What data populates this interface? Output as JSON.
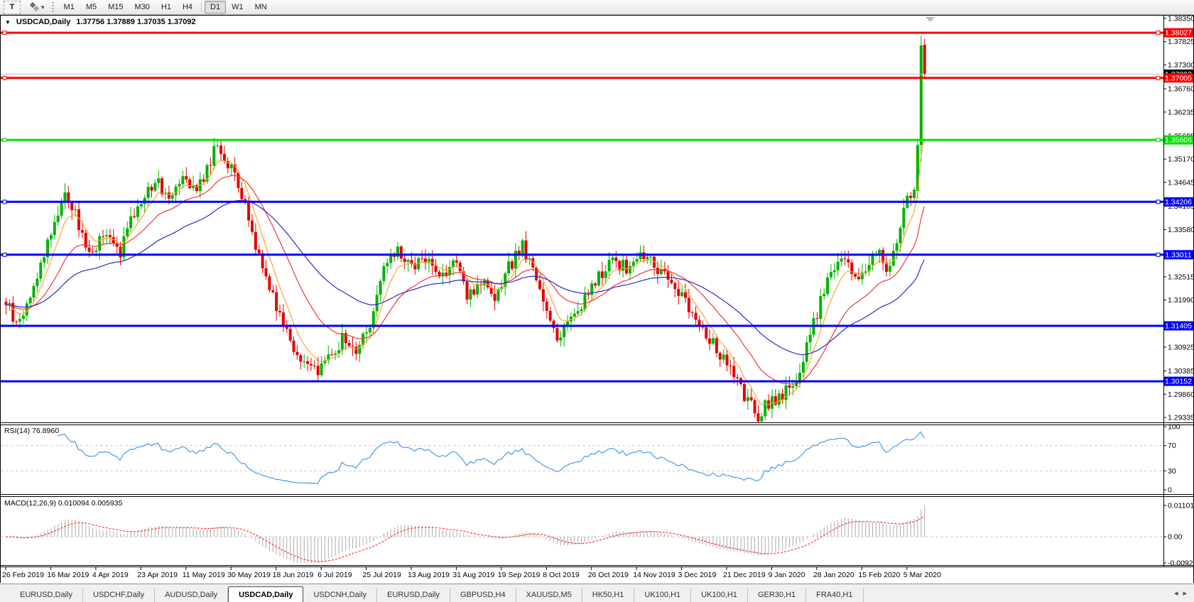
{
  "icons": {
    "title_collapse": "▼",
    "tool_caret": "▾",
    "tab_scroll_left": "◂",
    "tab_scroll_right": "▸"
  },
  "toolbar": {
    "text_tool_label": "T",
    "timeframes": [
      {
        "label": "M1",
        "active": false
      },
      {
        "label": "M5",
        "active": false
      },
      {
        "label": "M15",
        "active": false
      },
      {
        "label": "M30",
        "active": false
      },
      {
        "label": "H1",
        "active": false
      },
      {
        "label": "H4",
        "active": false
      },
      {
        "label": "D1",
        "active": true
      },
      {
        "label": "W1",
        "active": false
      },
      {
        "label": "MN",
        "active": false
      }
    ]
  },
  "title": {
    "symbol": "USDCAD,Daily",
    "ohlc": "1.37756 1.37889 1.37035 1.37092"
  },
  "tabs": {
    "items": [
      "EURUSD,Daily",
      "USDCHF,Daily",
      "AUDUSD,Daily",
      "USDCAD,Daily",
      "USDCNH,Daily",
      "EURUSD,Daily",
      "GBPUSD,H4",
      "XAUUSD,M5",
      "HK50,H1",
      "UK100,H1",
      "UK100,H1",
      "GER30,H1",
      "FRA40,H1"
    ],
    "active_index": 3
  },
  "colors": {
    "candle_up": "#00B300",
    "candle_down": "#E60000",
    "ma_fast": "#FFA52E",
    "ma_mid": "#F23535",
    "ma_slow": "#2A2AC8",
    "hline_red": "#FF0000",
    "hline_green": "#00E100",
    "hline_blue": "#0000FF",
    "current_price_line": "#BBBBBB",
    "current_price_badge": "#000000",
    "rsi_line": "#4499EE",
    "macd_hist": "#ABABAB",
    "macd_signal": "#FF3535",
    "level_dash": "#CCCCCC",
    "axis_text": "#000000"
  },
  "chart_data": {
    "type": "candlestick",
    "symbol": "USDCAD",
    "timeframe": "Daily",
    "last_candle": {
      "open": 1.37756,
      "high": 1.37889,
      "low": 1.37035,
      "close": 1.37092
    },
    "price_axis": {
      "max": 1.3835,
      "min": 1.29335,
      "ticks": [
        "1.38350",
        "1.37825",
        "1.37300",
        "1.36760",
        "1.36235",
        "1.35695",
        "1.35170",
        "1.34645",
        "1.34105",
        "1.33580",
        "1.32515",
        "1.31990",
        "1.30925",
        "1.30385",
        "1.29860",
        "1.29335"
      ]
    },
    "hlines": [
      {
        "price": 1.38027,
        "label": "1.38027",
        "color": "#FF0000",
        "width": 3,
        "handles": true
      },
      {
        "price": 1.37092,
        "label": "1.37092",
        "color": "#BBBBBB",
        "badge": "#000000",
        "width": 1,
        "handles": false,
        "current": true
      },
      {
        "price": 1.37005,
        "label": "1.37005",
        "color": "#FF0000",
        "width": 3,
        "handles": true
      },
      {
        "price": 1.35606,
        "label": "1.35606",
        "color": "#00E100",
        "width": 3,
        "handles": true
      },
      {
        "price": 1.34206,
        "label": "1.34206",
        "color": "#0000FF",
        "width": 3,
        "handles": true
      },
      {
        "price": 1.33011,
        "label": "1.33011",
        "color": "#0000FF",
        "width": 3,
        "handles": true
      },
      {
        "price": 1.31405,
        "label": "1.31405",
        "color": "#0000FF",
        "width": 3,
        "handles": false
      },
      {
        "price": 1.30152,
        "label": "1.30152",
        "color": "#0000FF",
        "width": 3,
        "handles": false
      }
    ],
    "date_axis": {
      "labels": [
        "26 Feb 2019",
        "16 Mar 2019",
        "4 Apr 2019",
        "23 Apr 2019",
        "11 May 2019",
        "30 May 2019",
        "18 Jun 2019",
        "6 Jul 2019",
        "25 Jul 2019",
        "13 Aug 2019",
        "31 Aug 2019",
        "19 Sep 2019",
        "8 Oct 2019",
        "26 Oct 2019",
        "14 Nov 2019",
        "3 Dec 2019",
        "21 Dec 2019",
        "9 Jan 2020",
        "28 Jan 2020",
        "15 Feb 2020",
        "5 Mar 2020"
      ]
    },
    "candles": {
      "count": 266,
      "keypoints": [
        [
          0,
          1.3195
        ],
        [
          3,
          1.314
        ],
        [
          7,
          1.3205
        ],
        [
          12,
          1.333
        ],
        [
          17,
          1.3445
        ],
        [
          21,
          1.337
        ],
        [
          24,
          1.33
        ],
        [
          28,
          1.3345
        ],
        [
          33,
          1.331
        ],
        [
          38,
          1.3415
        ],
        [
          43,
          1.347
        ],
        [
          47,
          1.3435
        ],
        [
          51,
          1.349
        ],
        [
          55,
          1.3445
        ],
        [
          61,
          1.355
        ],
        [
          65,
          1.3495
        ],
        [
          69,
          1.341
        ],
        [
          73,
          1.33
        ],
        [
          77,
          1.321
        ],
        [
          81,
          1.313
        ],
        [
          85,
          1.306
        ],
        [
          89,
          1.3035
        ],
        [
          93,
          1.307
        ],
        [
          97,
          1.311
        ],
        [
          101,
          1.3085
        ],
        [
          105,
          1.315
        ],
        [
          109,
          1.3265
        ],
        [
          113,
          1.3315
        ],
        [
          117,
          1.327
        ],
        [
          121,
          1.3295
        ],
        [
          125,
          1.325
        ],
        [
          129,
          1.329
        ],
        [
          133,
          1.321
        ],
        [
          137,
          1.324
        ],
        [
          141,
          1.319
        ],
        [
          145,
          1.327
        ],
        [
          149,
          1.3325
        ],
        [
          154,
          1.322
        ],
        [
          159,
          1.3115
        ],
        [
          163,
          1.316
        ],
        [
          167,
          1.32
        ],
        [
          171,
          1.325
        ],
        [
          175,
          1.329
        ],
        [
          179,
          1.327
        ],
        [
          183,
          1.33
        ],
        [
          187,
          1.328
        ],
        [
          191,
          1.3245
        ],
        [
          195,
          1.321
        ],
        [
          199,
          1.316
        ],
        [
          203,
          1.311
        ],
        [
          207,
          1.306
        ],
        [
          211,
          1.301
        ],
        [
          214,
          1.2965
        ],
        [
          217,
          1.294
        ],
        [
          220,
          1.2965
        ],
        [
          224,
          1.2985
        ],
        [
          228,
          1.302
        ],
        [
          231,
          1.309
        ],
        [
          234,
          1.317
        ],
        [
          237,
          1.3245
        ],
        [
          240,
          1.33
        ],
        [
          243,
          1.327
        ],
        [
          246,
          1.324
        ],
        [
          249,
          1.329
        ],
        [
          252,
          1.331
        ],
        [
          254,
          1.326
        ],
        [
          256,
          1.33
        ],
        [
          258,
          1.336
        ],
        [
          260,
          1.343
        ],
        [
          262,
          1.3445
        ],
        [
          263,
          1.3549
        ],
        [
          264,
          1.3774
        ],
        [
          265,
          1.37092
        ]
      ],
      "tail": [
        {
          "o": 1.3445,
          "h": 1.3561,
          "l": 1.3428,
          "c": 1.3549
        },
        {
          "o": 1.3549,
          "h": 1.3796,
          "l": 1.3512,
          "c": 1.3774
        },
        {
          "o": 1.37756,
          "h": 1.37889,
          "l": 1.37035,
          "c": 1.37092
        }
      ]
    },
    "moving_averages": [
      {
        "name": "fast",
        "period": 7,
        "color": "#FFA52E"
      },
      {
        "name": "mid",
        "period": 21,
        "color": "#F23535"
      },
      {
        "name": "slow",
        "period": 50,
        "color": "#2A2AC8"
      }
    ],
    "rsi": {
      "label": "RSI(14) 76.8960",
      "period": 14,
      "value": "76.8960",
      "axis": [
        {
          "v": 100,
          "t": "100"
        },
        {
          "v": 70,
          "t": "70"
        },
        {
          "v": 30,
          "t": "30"
        },
        {
          "v": 0,
          "t": "0"
        }
      ],
      "dashed_levels": [
        70,
        30
      ]
    },
    "macd": {
      "label": "MACD(12,26,9) 0.010094 0.005935",
      "fast": 12,
      "slow": 26,
      "signal": 9,
      "main_value": "0.010094",
      "signal_value": "0.005935",
      "axis": [
        {
          "v": 0.011013,
          "t": "0.011013"
        },
        {
          "v": 0,
          "t": "0.00"
        },
        {
          "v": -0.0092,
          "t": "-0.0092"
        }
      ]
    }
  }
}
